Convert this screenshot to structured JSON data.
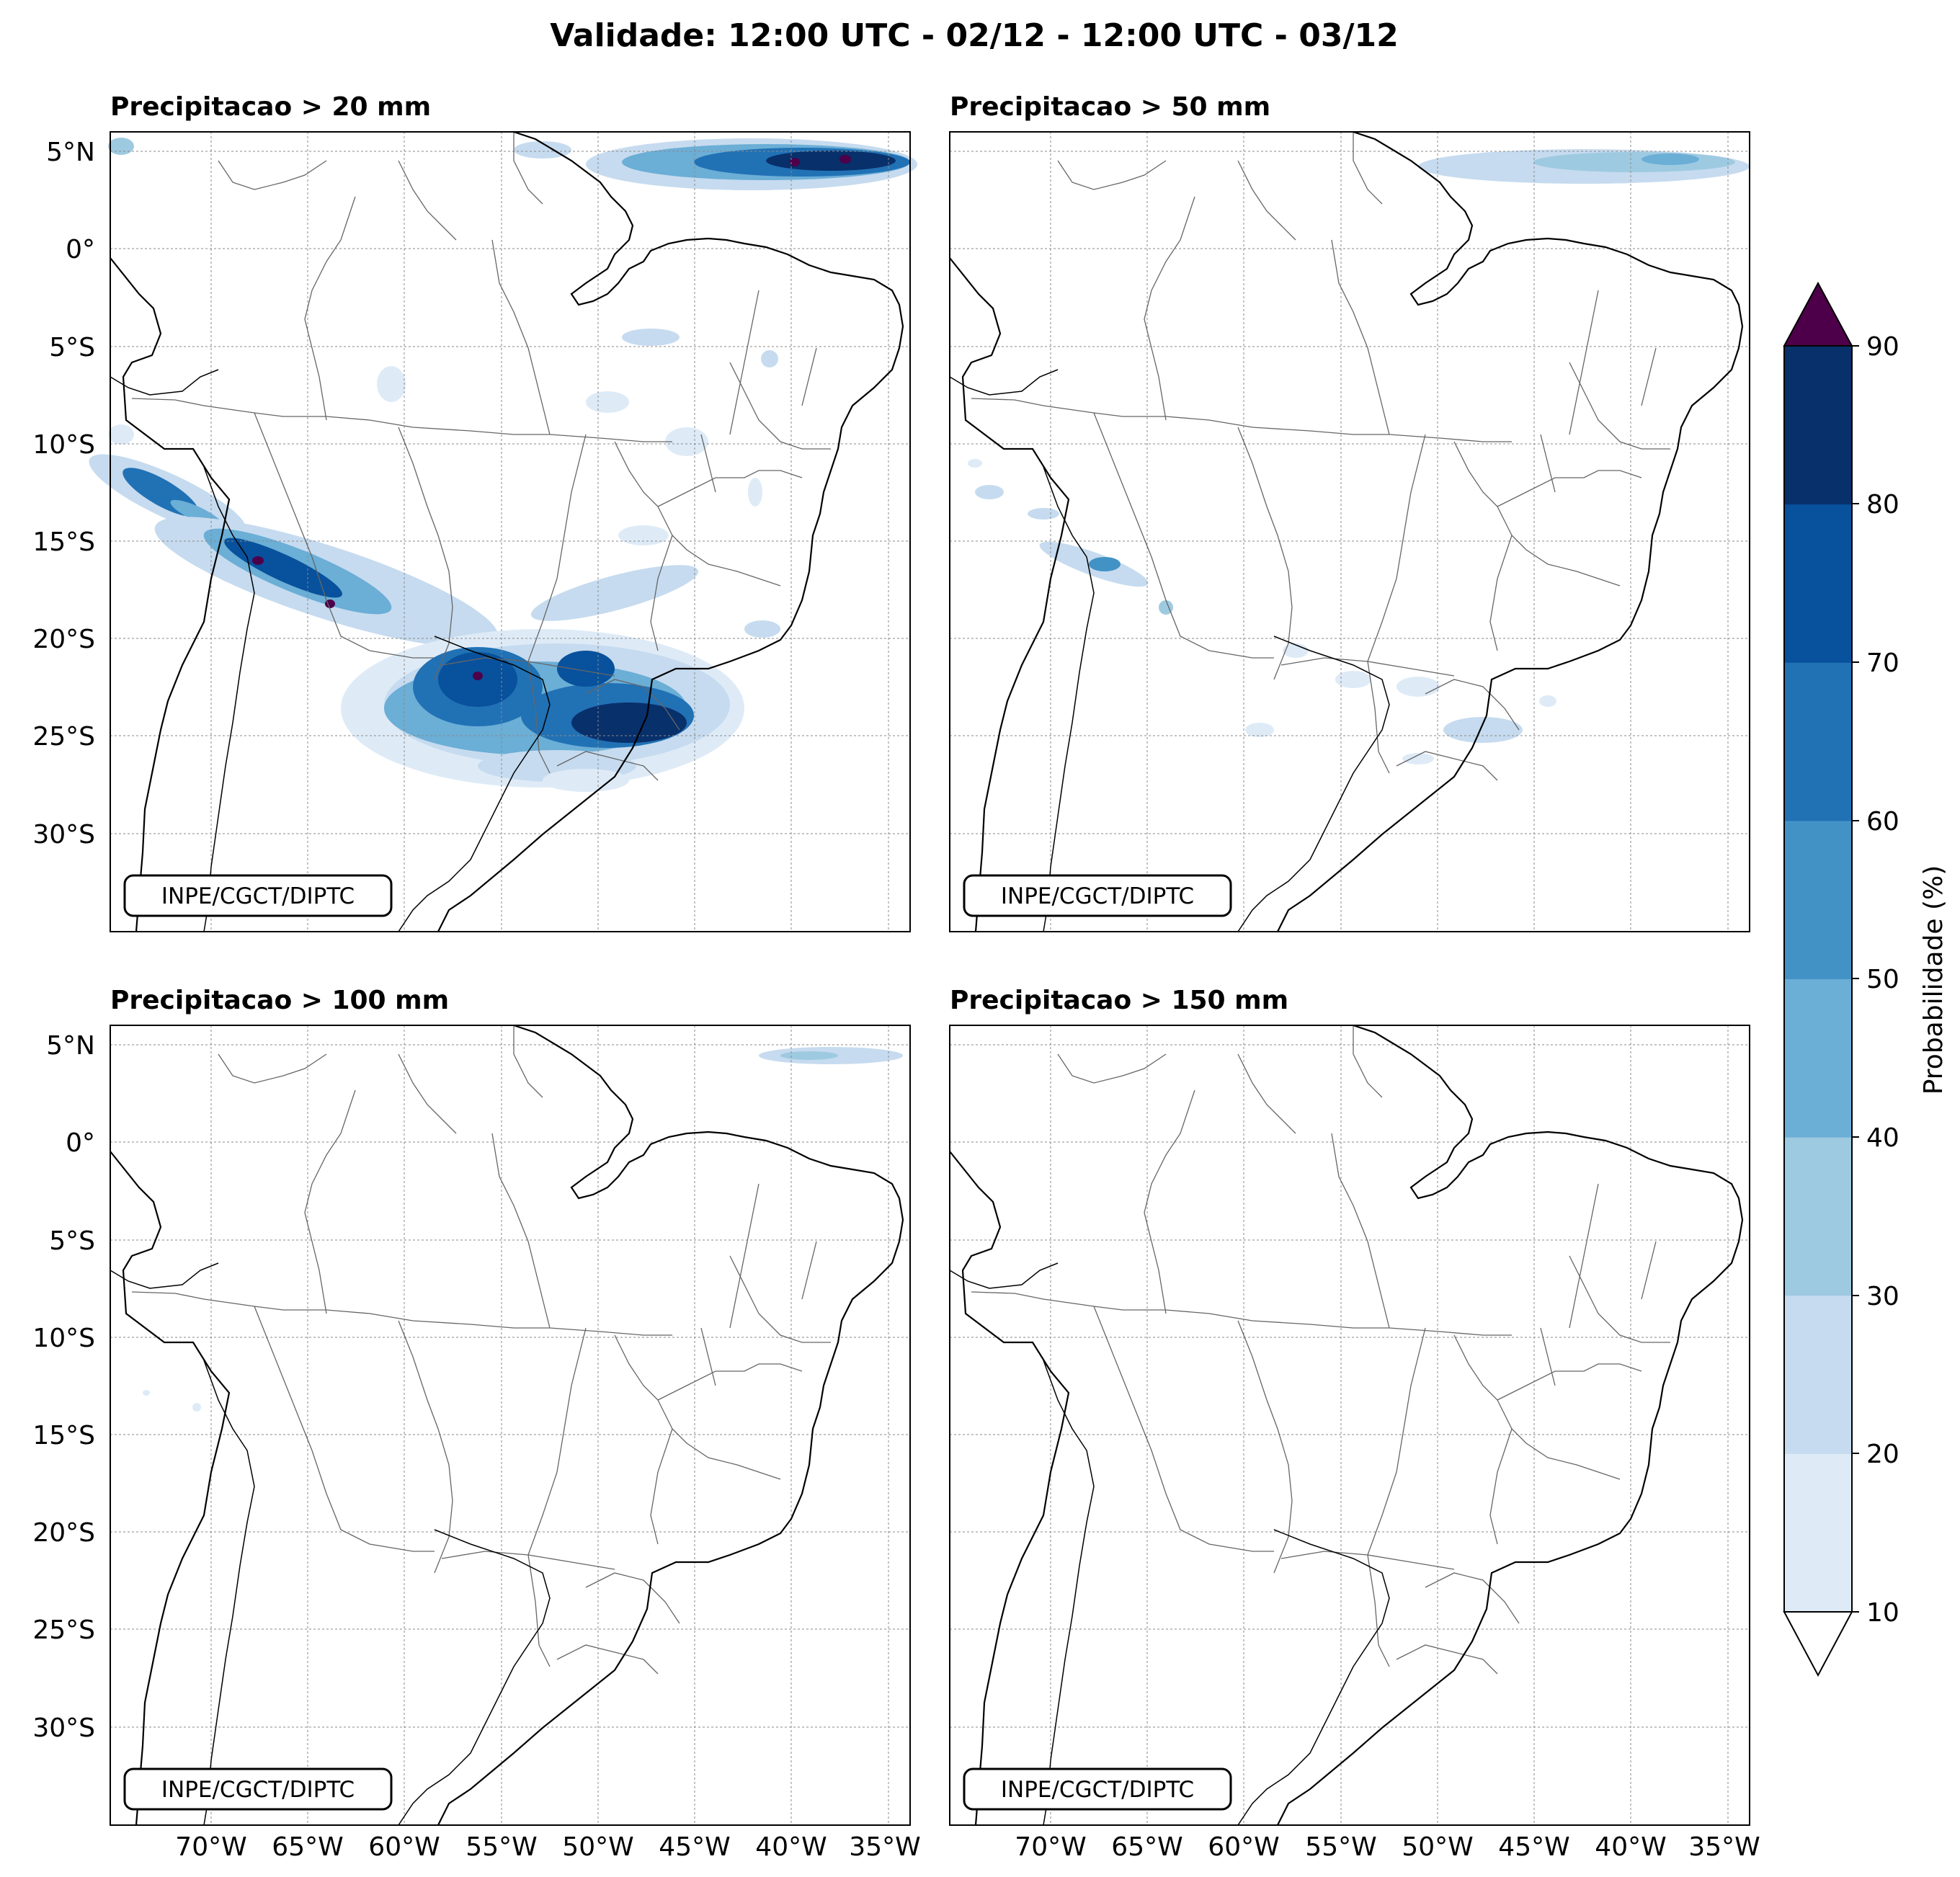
{
  "figure": {
    "title": "Validade: 12:00 UTC - 02/12 - 12:00 UTC - 03/12"
  },
  "panels": [
    {
      "title": "Precipitacao > 20 mm",
      "threshold_mm": 20,
      "credit": "INPE/CGCT/DIPTC"
    },
    {
      "title": "Precipitacao > 50 mm",
      "threshold_mm": 50,
      "credit": "INPE/CGCT/DIPTC"
    },
    {
      "title": "Precipitacao > 100 mm",
      "threshold_mm": 100,
      "credit": "INPE/CGCT/DIPTC"
    },
    {
      "title": "Precipitacao > 150 mm",
      "threshold_mm": 150,
      "credit": "INPE/CGCT/DIPTC"
    }
  ],
  "axes": {
    "lon_ticks": [
      "70°W",
      "65°W",
      "60°W",
      "55°W",
      "50°W",
      "45°W",
      "40°W",
      "35°W"
    ],
    "lat_ticks": [
      "5°N",
      "0°",
      "5°S",
      "10°S",
      "15°S",
      "20°S",
      "25°S",
      "30°S"
    ]
  },
  "colorbar": {
    "label": "Probabilidade (%)",
    "ticks": [
      "10",
      "20",
      "30",
      "40",
      "50",
      "60",
      "70",
      "80",
      "90"
    ],
    "colors": [
      "#deebf7",
      "#c6dbef",
      "#9ecae1",
      "#6baed6",
      "#4292c6",
      "#2171b5",
      "#08519c",
      "#08306b"
    ],
    "over_color": "#4d0049",
    "under_color": "#ffffff"
  },
  "map_style": {
    "coastline_color": "#000000",
    "border_color": "#666666",
    "gridline_color": "#8a8a8a"
  }
}
